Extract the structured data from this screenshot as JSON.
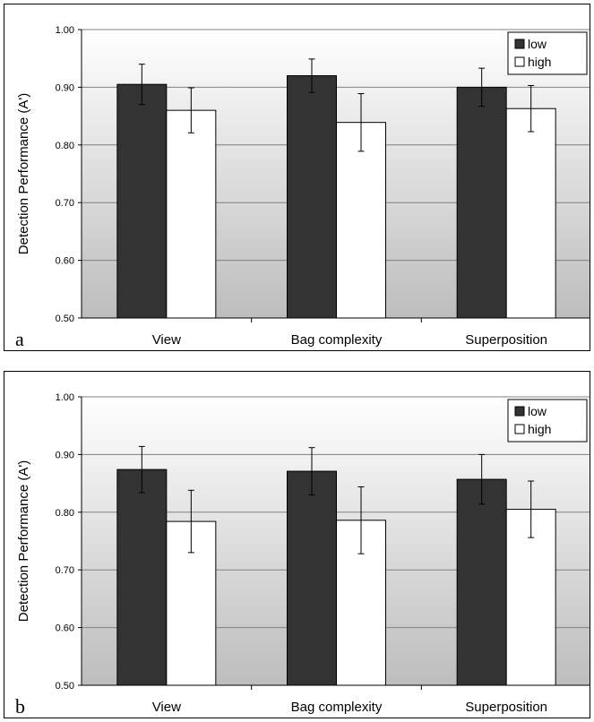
{
  "chart_data": [
    {
      "type": "bar",
      "panel_label": "a",
      "categories": [
        "View",
        "Bag complexity",
        "Superposition"
      ],
      "ylabel": "Detection Performance (A')",
      "ylim": [
        0.5,
        1.0
      ],
      "yticks": [
        "0.50",
        "0.60",
        "0.70",
        "0.80",
        "0.90",
        "1.00"
      ],
      "legend_position": "top-right",
      "series": [
        {
          "name": "low",
          "color": "#333333",
          "values": [
            0.905,
            0.92,
            0.9
          ],
          "error": [
            0.035,
            0.029,
            0.033
          ]
        },
        {
          "name": "high",
          "color": "#ffffff",
          "values": [
            0.86,
            0.839,
            0.863
          ],
          "error": [
            0.039,
            0.05,
            0.04
          ]
        }
      ]
    },
    {
      "type": "bar",
      "panel_label": "b",
      "categories": [
        "View",
        "Bag complexity",
        "Superposition"
      ],
      "ylabel": "Detection Performance (A')",
      "ylim": [
        0.5,
        1.0
      ],
      "yticks": [
        "0.50",
        "0.60",
        "0.70",
        "0.80",
        "0.90",
        "1.00"
      ],
      "legend_position": "top-right",
      "series": [
        {
          "name": "low",
          "color": "#333333",
          "values": [
            0.874,
            0.871,
            0.857
          ],
          "error": [
            0.04,
            0.041,
            0.043
          ]
        },
        {
          "name": "high",
          "color": "#ffffff",
          "values": [
            0.784,
            0.786,
            0.805
          ],
          "error": [
            0.054,
            0.058,
            0.049
          ]
        }
      ]
    }
  ]
}
